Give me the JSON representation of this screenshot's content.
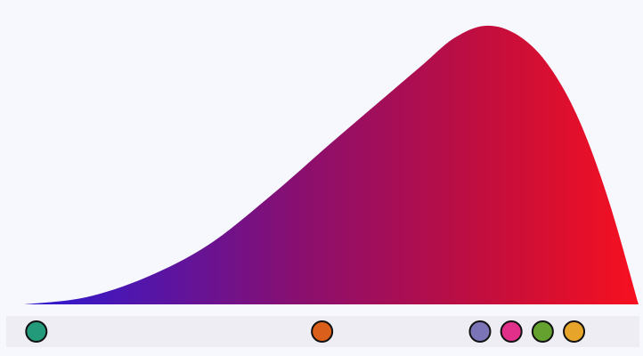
{
  "chart_data": {
    "type": "area",
    "title": "",
    "xlabel": "",
    "ylabel": "",
    "x_range": [
      0,
      1
    ],
    "y_range": [
      0,
      1
    ],
    "grid": false,
    "legend": "none",
    "curve": {
      "x": [
        0.0,
        0.1,
        0.2,
        0.3,
        0.4,
        0.5,
        0.6,
        0.65,
        0.7,
        0.75,
        0.8,
        0.85,
        0.9,
        0.95,
        1.0
      ],
      "y": [
        0.0,
        0.025,
        0.098,
        0.213,
        0.386,
        0.578,
        0.766,
        0.86,
        0.953,
        0.997,
        0.968,
        0.866,
        0.675,
        0.381,
        0.0
      ]
    },
    "gradient_colors": [
      "#2a1ad6",
      "#8a0f6f",
      "#c20e3e",
      "#f7101f"
    ],
    "rug": {
      "background": "#ededf3",
      "markers": [
        {
          "x": 0.02,
          "color": "#239a79"
        },
        {
          "x": 0.485,
          "color": "#d95f1b"
        },
        {
          "x": 0.742,
          "color": "#7b74b6"
        },
        {
          "x": 0.793,
          "color": "#e0308a"
        },
        {
          "x": 0.844,
          "color": "#64a12e"
        },
        {
          "x": 0.895,
          "color": "#e6a52a"
        }
      ]
    }
  }
}
